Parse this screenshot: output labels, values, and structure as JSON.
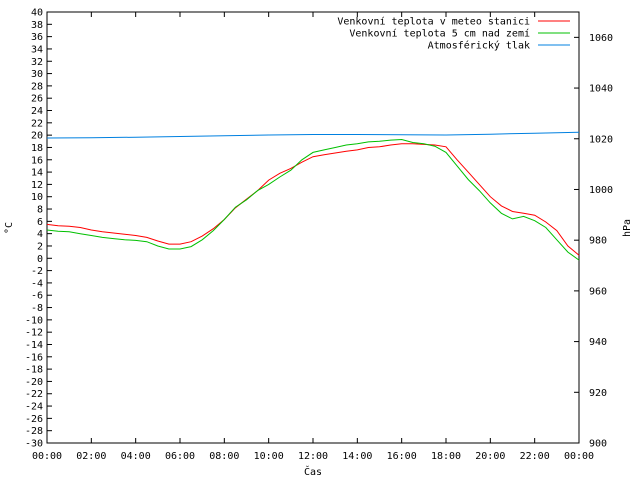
{
  "chart_data": {
    "type": "line",
    "xlabel": "Čas",
    "ylabel": "°C",
    "y2label": "hPa",
    "xlim": [
      0,
      24
    ],
    "ylim": [
      -30,
      40
    ],
    "y2lim": [
      900,
      1070
    ],
    "x_ticks": [
      {
        "v": 0,
        "label": "00:00"
      },
      {
        "v": 2,
        "label": "02:00"
      },
      {
        "v": 4,
        "label": "04:00"
      },
      {
        "v": 6,
        "label": "06:00"
      },
      {
        "v": 8,
        "label": "08:00"
      },
      {
        "v": 10,
        "label": "10:00"
      },
      {
        "v": 12,
        "label": "12:00"
      },
      {
        "v": 14,
        "label": "14:00"
      },
      {
        "v": 16,
        "label": "16:00"
      },
      {
        "v": 18,
        "label": "18:00"
      },
      {
        "v": 20,
        "label": "20:00"
      },
      {
        "v": 22,
        "label": "22:00"
      },
      {
        "v": 24,
        "label": "00:00"
      }
    ],
    "y_ticks": [
      40,
      38,
      36,
      34,
      32,
      30,
      28,
      26,
      24,
      22,
      20,
      18,
      16,
      14,
      12,
      10,
      8,
      6,
      4,
      2,
      0,
      -2,
      -4,
      -6,
      -8,
      -10,
      -12,
      -14,
      -16,
      -18,
      -20,
      -22,
      -24,
      -26,
      -28,
      -30
    ],
    "y2_ticks": [
      1060,
      1040,
      1020,
      1000,
      980,
      960,
      940,
      920,
      900
    ],
    "legend_position": "top-right",
    "series": [
      {
        "name": "Venkovní teplota v meteo stanici",
        "axis": "left",
        "color": "#ff0000",
        "x": [
          0,
          0.5,
          1,
          1.5,
          2,
          2.5,
          3,
          3.5,
          4,
          4.5,
          5,
          5.5,
          6,
          6.5,
          7,
          7.5,
          8,
          8.5,
          9,
          9.5,
          10,
          10.5,
          11,
          11.5,
          12,
          12.5,
          13,
          13.5,
          14,
          14.5,
          15,
          15.5,
          16,
          16.5,
          17,
          17.5,
          18,
          18.5,
          19,
          19.5,
          20,
          20.5,
          21,
          21.5,
          22,
          22.5,
          23,
          23.5,
          24
        ],
        "y": [
          5.5,
          5.3,
          5.2,
          5.0,
          4.6,
          4.3,
          4.1,
          3.9,
          3.7,
          3.4,
          2.8,
          2.3,
          2.3,
          2.7,
          3.6,
          4.8,
          6.3,
          8.2,
          9.6,
          11,
          12.7,
          13.8,
          14.6,
          15.6,
          16.5,
          16.8,
          17.1,
          17.4,
          17.6,
          18.0,
          18.1,
          18.4,
          18.6,
          18.6,
          18.5,
          18.4,
          18.1,
          16.0,
          14.0,
          12.0,
          10.0,
          8.5,
          7.6,
          7.3,
          7.0,
          5.9,
          4.5,
          2.0,
          0.5
        ]
      },
      {
        "name": "Venkovní teplota 5 cm nad zemí",
        "axis": "left",
        "color": "#00c000",
        "x": [
          0,
          0.5,
          1,
          1.5,
          2,
          2.5,
          3,
          3.5,
          4,
          4.5,
          5,
          5.5,
          6,
          6.5,
          7,
          7.5,
          8,
          8.5,
          9,
          9.5,
          10,
          10.5,
          11,
          11.5,
          12,
          12.5,
          13,
          13.5,
          14,
          14.5,
          15,
          15.5,
          16,
          16.5,
          17,
          17.5,
          18,
          18.5,
          19,
          19.5,
          20,
          20.5,
          21,
          21.5,
          22,
          22.5,
          23,
          23.5,
          24
        ],
        "y": [
          4.6,
          4.4,
          4.3,
          4.0,
          3.7,
          3.4,
          3.2,
          3.0,
          2.9,
          2.7,
          2.0,
          1.5,
          1.5,
          1.9,
          3.0,
          4.5,
          6.3,
          8.3,
          9.5,
          11.0,
          12.0,
          13.2,
          14.3,
          16.0,
          17.2,
          17.6,
          18.0,
          18.4,
          18.6,
          18.9,
          19.0,
          19.2,
          19.3,
          18.8,
          18.6,
          18.2,
          17.2,
          15.0,
          12.8,
          11.0,
          9.0,
          7.3,
          6.4,
          6.8,
          6.1,
          5.0,
          3.0,
          1.0,
          -0.3
        ]
      },
      {
        "name": "Atmosférický tlak",
        "axis": "right",
        "color": "#0080e0",
        "x": [
          0,
          2,
          4,
          6,
          8,
          10,
          12,
          14,
          16,
          18,
          20,
          22,
          24
        ],
        "y": [
          1020.3,
          1020.4,
          1020.6,
          1020.9,
          1021.2,
          1021.5,
          1021.7,
          1021.7,
          1021.6,
          1021.5,
          1021.8,
          1022.2,
          1022.6
        ]
      }
    ]
  }
}
